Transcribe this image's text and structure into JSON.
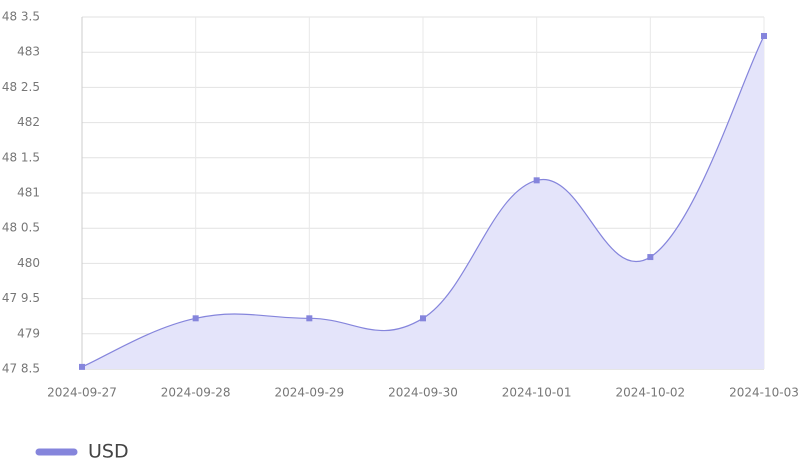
{
  "chart_data": {
    "type": "line",
    "categories": [
      "2024-09-27",
      "2024-09-28",
      "2024-09-29",
      "2024-09-30",
      "2024-10-01",
      "2024-10-02",
      "2024-10-03"
    ],
    "series": [
      {
        "name": "USD",
        "color": "#8585dc",
        "values": [
          478.53,
          479.22,
          479.22,
          479.22,
          481.18,
          480.09,
          483.23
        ]
      }
    ],
    "ylim": [
      478.5,
      483.5
    ],
    "yticks": [
      {
        "value": 478.5,
        "label": "47 8.5"
      },
      {
        "value": 479,
        "label": "479"
      },
      {
        "value": 479.5,
        "label": "47 9.5"
      },
      {
        "value": 480,
        "label": "480"
      },
      {
        "value": 480.5,
        "label": "48 0.5"
      },
      {
        "value": 481,
        "label": "481"
      },
      {
        "value": 481.5,
        "label": "48 1.5"
      },
      {
        "value": 482,
        "label": "482"
      },
      {
        "value": 482.5,
        "label": "48 2.5"
      },
      {
        "value": 483,
        "label": "483"
      },
      {
        "value": 483.5,
        "label": "48 3.5"
      }
    ],
    "grid": true,
    "fill": "#e4e4fa"
  }
}
